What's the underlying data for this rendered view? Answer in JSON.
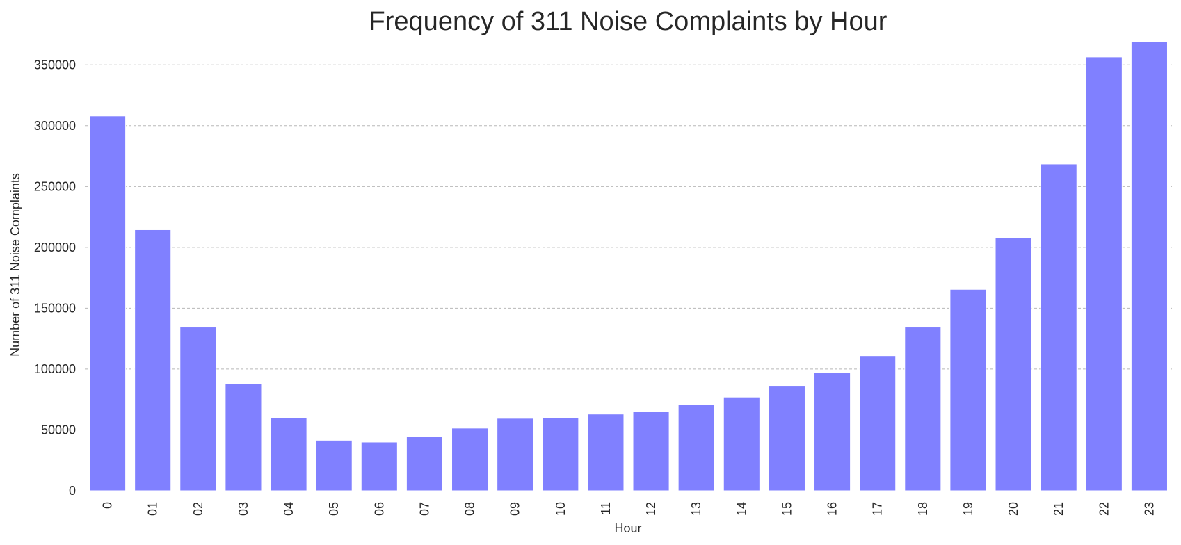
{
  "chart_data": {
    "type": "bar",
    "title": "Frequency of 311 Noise Complaints by Hour",
    "xlabel": "Hour",
    "ylabel": "Number of 311 Noise Complaints",
    "categories": [
      "0",
      "01",
      "02",
      "03",
      "04",
      "05",
      "06",
      "07",
      "08",
      "09",
      "10",
      "11",
      "12",
      "13",
      "14",
      "15",
      "16",
      "17",
      "18",
      "19",
      "20",
      "21",
      "22",
      "23"
    ],
    "values": [
      308000,
      214500,
      134500,
      88000,
      60000,
      41500,
      40000,
      44500,
      51500,
      59500,
      60000,
      63000,
      65000,
      71000,
      77000,
      86500,
      97000,
      111000,
      134500,
      165500,
      208000,
      268500,
      356500,
      369000
    ],
    "ylim": [
      0,
      369000
    ],
    "yticks": [
      0,
      50000,
      100000,
      150000,
      200000,
      250000,
      300000,
      350000
    ],
    "ytick_labels": [
      "0",
      "50000",
      "100000",
      "150000",
      "200000",
      "250000",
      "300000",
      "350000"
    ],
    "grid": "y-dashed",
    "bar_color": "#8080ff"
  }
}
